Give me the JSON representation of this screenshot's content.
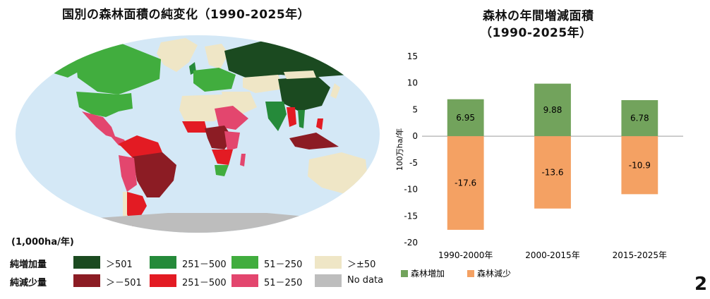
{
  "map": {
    "title": "国別の森林面積の純変化（1990-2025年）",
    "unit": "(1,000ha/年)",
    "increase_label": "純増加量",
    "decrease_label": "純減少量",
    "ocean_color": "#d4e8f6",
    "legend": {
      "increase": [
        {
          "text": "＞501",
          "color": "#1b4a20"
        },
        {
          "text": "251－500",
          "color": "#258a3a"
        },
        {
          "text": "51－250",
          "color": "#41ad3e"
        },
        {
          "text": "＞±50",
          "color": "#efe6c6"
        }
      ],
      "decrease": [
        {
          "text": "＞－501",
          "color": "#8c1c24"
        },
        {
          "text": "251－500",
          "color": "#e31b23"
        },
        {
          "text": "51－250",
          "color": "#e3466e"
        },
        {
          "text": "No data",
          "color": "#bdbdbd"
        }
      ]
    }
  },
  "chart_data": {
    "type": "bar",
    "title": "森林の年間増減面積",
    "subtitle": "（1990-2025年）",
    "ylabel": "100万ha/年",
    "categories": [
      "1990-2000年",
      "2000-2015年",
      "2015-2025年"
    ],
    "series": [
      {
        "name": "森林増加",
        "values": [
          6.95,
          9.88,
          6.78
        ],
        "labels": [
          "6.95",
          "9.88",
          "6.78"
        ],
        "color": "#72a35c"
      },
      {
        "name": "森林減少",
        "values": [
          -17.6,
          -13.6,
          -10.9
        ],
        "labels": [
          "-17.6",
          "-13.6",
          "-10.9"
        ],
        "color": "#f4a163"
      }
    ],
    "ylim": [
      -20,
      15
    ],
    "yticks": [
      15,
      10,
      5,
      0,
      -5,
      -10,
      -15,
      -20
    ],
    "grid": false,
    "legend_position": "bottom-left"
  },
  "page_number": "2"
}
